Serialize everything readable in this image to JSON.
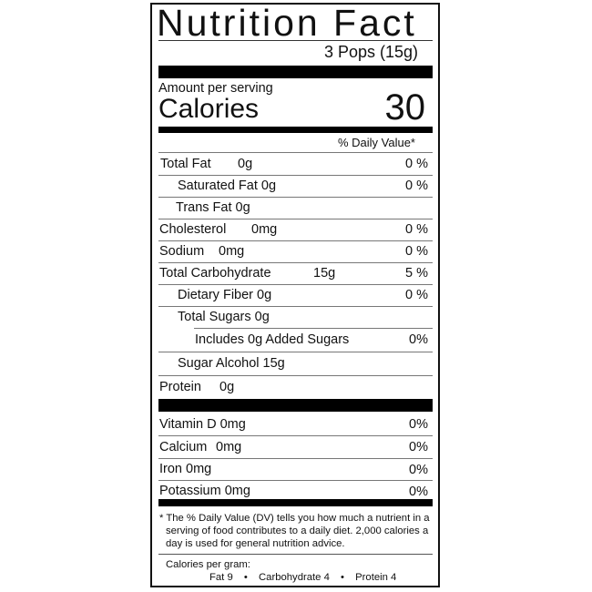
{
  "title": "Nutrition Fact",
  "serving_size": "3 Pops (15g)",
  "amount_per_serving": "Amount per serving",
  "calories_label": "Calories",
  "calories_value": "30",
  "daily_value_header": "% Daily Value*",
  "nutrients": [
    {
      "name": "Total Fat",
      "amount": "0g",
      "dv": "0 %"
    },
    {
      "name": "Saturated Fat 0g",
      "dv": "0 %"
    },
    {
      "name": "Trans Fat 0g"
    },
    {
      "name": "Cholesterol",
      "amount": "0mg",
      "dv": "0 %"
    },
    {
      "name": "Sodium",
      "amount": "0mg",
      "dv": "0 %"
    },
    {
      "name": "Total Carbohydrate",
      "amount": "15g",
      "dv": "5 %"
    },
    {
      "name": "Dietary Fiber 0g",
      "dv": "0 %"
    },
    {
      "name": "Total Sugars 0g"
    },
    {
      "name": "Includes 0g Added Sugars",
      "dv": "0%"
    },
    {
      "name": "Sugar Alcohol 15g"
    },
    {
      "name": "Protein",
      "amount": "0g"
    }
  ],
  "vitamins": [
    {
      "name": "Vitamin D 0mg",
      "dv": "0%"
    },
    {
      "name": "Calcium",
      "amount": "0mg",
      "dv": "0%"
    },
    {
      "name": "Iron 0mg",
      "dv": "0%"
    },
    {
      "name": "Potassium 0mg",
      "dv": "0%"
    }
  ],
  "footnote": "* The % Daily Value (DV) tells you how much a nutrient in a serving of food contributes to a daily diet. 2,000 calories a day is used for general nutrition advice.",
  "calories_per_gram": {
    "label": "Calories per gram:",
    "fat": "Fat 9",
    "carb": "Carbohydrate 4",
    "protein": "Protein 4",
    "separator": "•"
  }
}
